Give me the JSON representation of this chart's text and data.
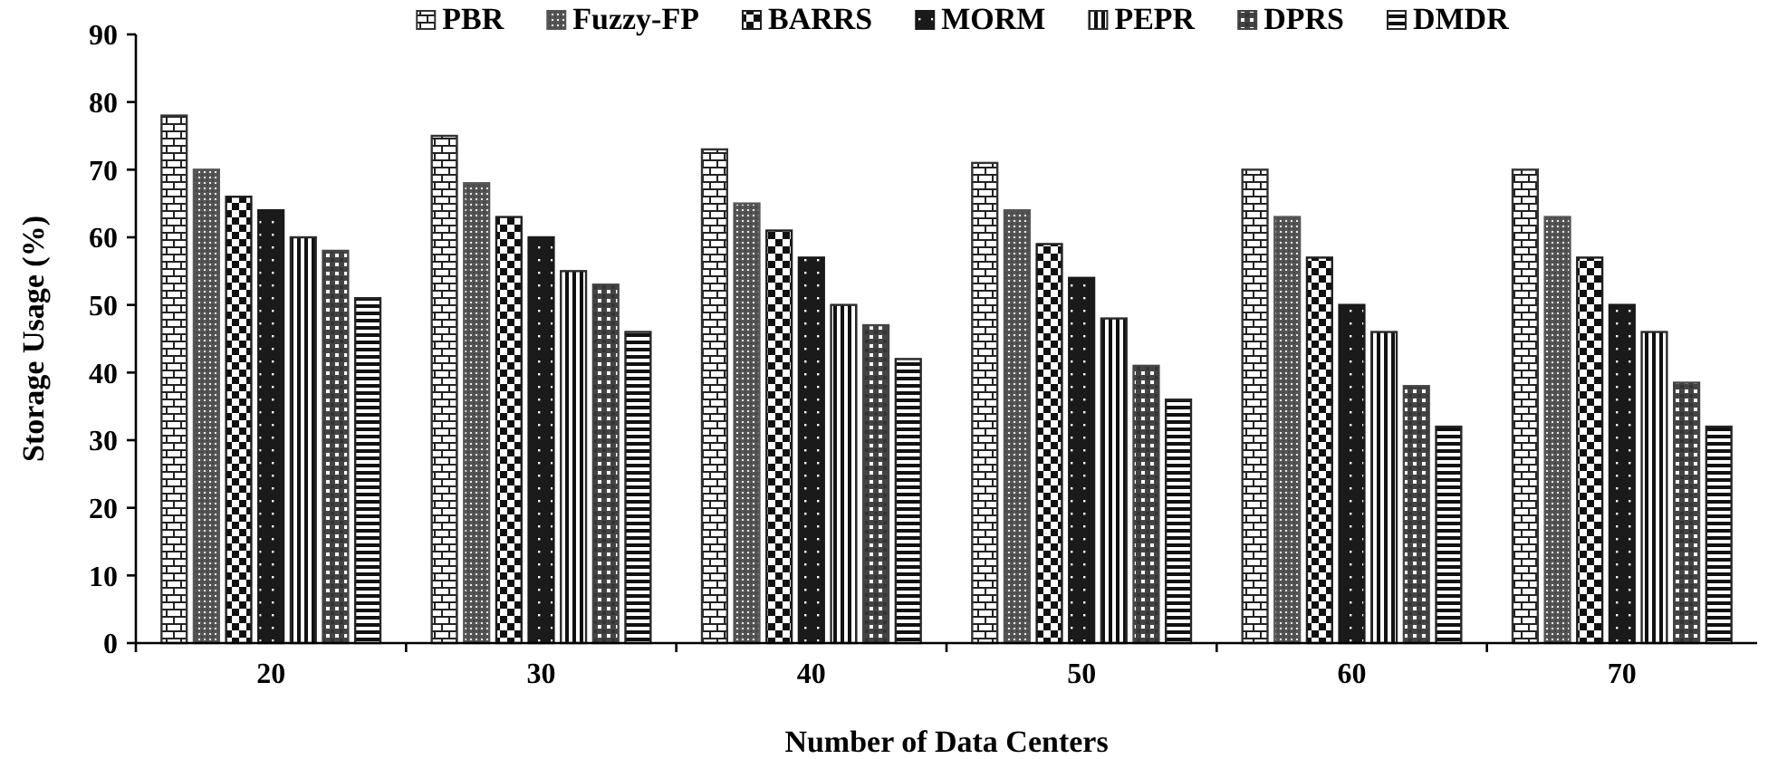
{
  "chart_data": {
    "type": "bar",
    "xlabel": "Number of Data Centers",
    "ylabel": "Storage Usage (%)",
    "categories": [
      "20",
      "30",
      "40",
      "50",
      "60",
      "70"
    ],
    "series": [
      {
        "name": "PBR",
        "color": "#333333",
        "values": [
          78,
          75,
          73,
          71,
          70,
          70
        ]
      },
      {
        "name": "Fuzzy-FP",
        "color": "#555555",
        "values": [
          70,
          68,
          65,
          64,
          63,
          63
        ]
      },
      {
        "name": "BARRS",
        "color": "#1f1f1f",
        "values": [
          66,
          63,
          61,
          59,
          57,
          57
        ]
      },
      {
        "name": "MORM",
        "color": "#1a1a1a",
        "values": [
          64,
          60,
          57,
          54,
          50,
          50
        ]
      },
      {
        "name": "PEPR",
        "color": "#2b2b2b",
        "values": [
          60,
          55,
          50,
          48,
          46,
          46
        ]
      },
      {
        "name": "DPRS",
        "color": "#444444",
        "values": [
          58,
          53,
          47,
          41,
          38,
          38.5
        ]
      },
      {
        "name": "DMDR",
        "color": "#262626",
        "values": [
          51,
          46,
          42,
          36,
          32,
          32
        ]
      }
    ],
    "ylim": [
      0,
      90
    ],
    "yticks": [
      0,
      10,
      20,
      30,
      40,
      50,
      60,
      70,
      80,
      90
    ],
    "grid": false,
    "legend": "top"
  }
}
